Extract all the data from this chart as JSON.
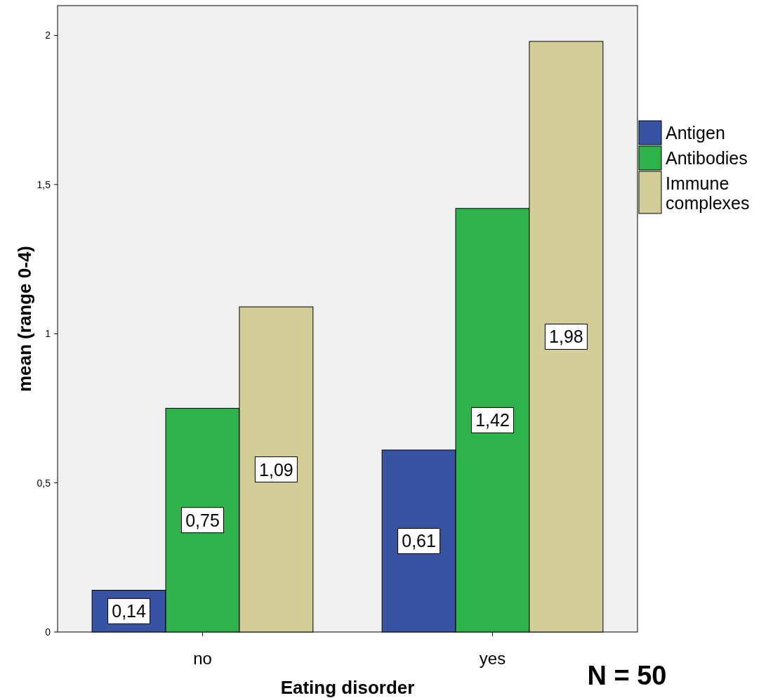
{
  "chart_data": {
    "type": "bar",
    "xlabel": "Eating disorder",
    "ylabel": "mean (range 0-4)",
    "categories": [
      "no",
      "yes"
    ],
    "series": [
      {
        "name": "Antigen",
        "color": "#3953a4",
        "values": [
          0.14,
          0.61
        ],
        "value_labels": [
          "0,14",
          "0,61"
        ]
      },
      {
        "name": "Antibodies",
        "color": "#2db34a",
        "values": [
          0.75,
          1.42
        ],
        "value_labels": [
          "0,75",
          "1,42"
        ]
      },
      {
        "name": "Immune complexes",
        "color": "#d3ce97",
        "values": [
          1.09,
          1.98
        ],
        "value_labels": [
          "1,09",
          "1,98"
        ]
      }
    ],
    "ylim": [
      0,
      2.1
    ],
    "yticks": [
      0,
      {
        "value": 0.5,
        "label": "0,5"
      },
      1,
      {
        "value": 1.5,
        "label": "1,5"
      },
      2
    ],
    "legend": "right",
    "grid": false,
    "annotations": [
      "N = 50"
    ]
  }
}
